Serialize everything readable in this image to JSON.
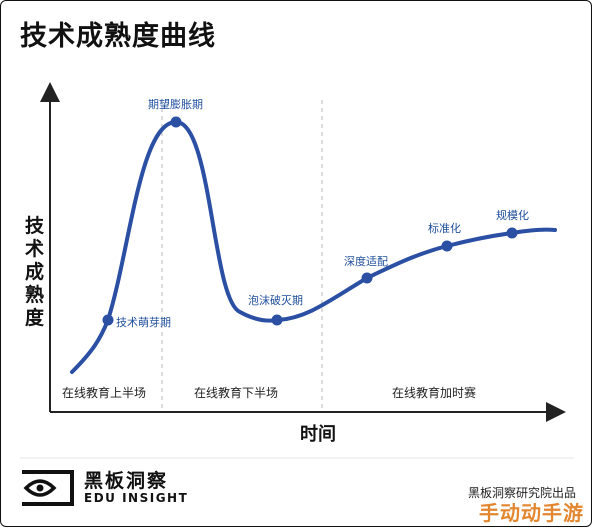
{
  "title": "技术成熟度曲线",
  "y_axis_label": [
    "技",
    "术",
    "成",
    "熟",
    "度"
  ],
  "x_axis_label": "时间",
  "regions": [
    "在线教育上半场",
    "在线教育下半场",
    "在线教育加时赛"
  ],
  "phases": [
    {
      "label": "技术萌芽期"
    },
    {
      "label": "期望膨胀期"
    },
    {
      "label": "泡沫破灭期"
    },
    {
      "label": "深度适配"
    },
    {
      "label": "标准化"
    },
    {
      "label": "规模化"
    }
  ],
  "brand": {
    "name_cn": "黑板洞察",
    "name_en": "EDU INSIGHT",
    "logo": "eye-logo"
  },
  "source": "黑板洞察研究院出品",
  "watermark": "手动动手游",
  "colors": {
    "curve": "#2b4fa3",
    "point": "#2b4fa3",
    "axis": "#222222",
    "divider": "#bbbbbb",
    "watermark": "#e07a1a"
  }
}
